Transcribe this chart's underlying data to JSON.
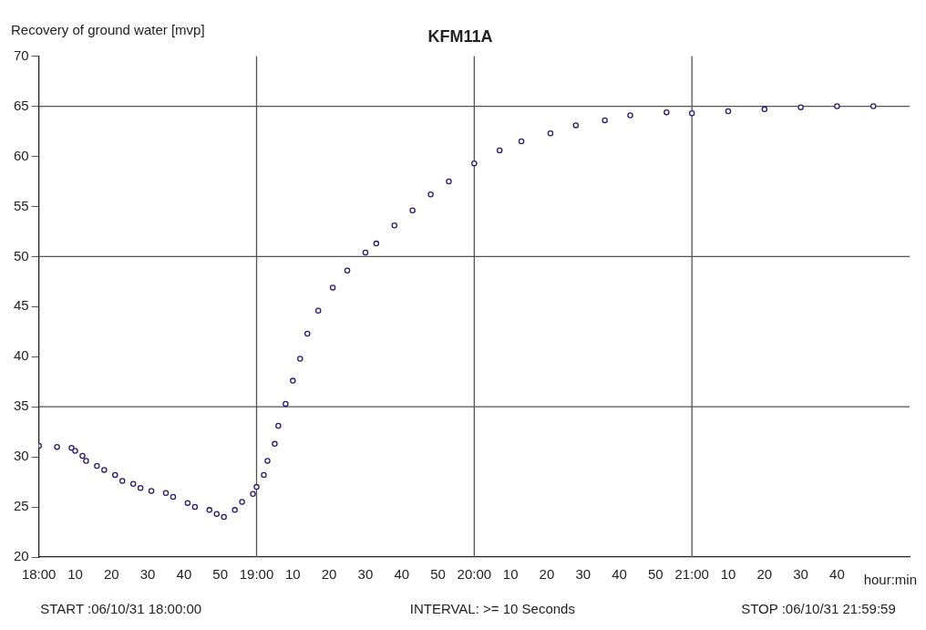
{
  "chart_data": {
    "type": "scatter",
    "title": "KFM11A",
    "ylabel": "Recovery of ground water [mvp]",
    "xlabel": "hour:min",
    "annotations": [
      "START :06/10/31 18:00:00",
      "INTERVAL: >= 10 Seconds",
      "STOP :06/10/31 21:59:59"
    ],
    "x": [
      "--10-31T18:00",
      "--10-31T18:05",
      "--10-31T18:09",
      "--10-31T18:10",
      "--10-31T18:12",
      "--10-31T18:13",
      "--10-31T18:16",
      "--10-31T18:18",
      "--10-31T18:21",
      "--10-31T18:23",
      "--10-31T18:26",
      "--10-31T18:28",
      "--10-31T18:31",
      "--10-31T18:35",
      "--10-31T18:37",
      "--10-31T18:41",
      "--10-31T18:43",
      "--10-31T18:47",
      "--10-31T18:49",
      "--10-31T18:51",
      "--10-31T18:54",
      "--10-31T18:56",
      "--10-31T18:59",
      "--10-31T19:00",
      "--10-31T19:02",
      "--10-31T19:03",
      "--10-31T19:05",
      "--10-31T19:06",
      "--10-31T19:08",
      "--10-31T19:10",
      "--10-31T19:12",
      "--10-31T19:14",
      "--10-31T19:17",
      "--10-31T19:21",
      "--10-31T19:25",
      "--10-31T19:30",
      "--10-31T19:33",
      "--10-31T19:38",
      "--10-31T19:43",
      "--10-31T19:48",
      "--10-31T19:53",
      "--10-31T20:00",
      "--10-31T20:07",
      "--10-31T20:13",
      "--10-31T20:21",
      "--10-31T20:28",
      "--10-31T20:36",
      "--10-31T20:43",
      "--10-31T20:53",
      "--10-31T21:00",
      "--10-31T21:10",
      "--10-31T21:20",
      "--10-31T21:30",
      "--10-31T21:40",
      "--10-31T21:50"
    ],
    "series": [
      {
        "color": "#2e1a6e",
        "values": [
          31.1,
          31.0,
          30.9,
          30.6,
          30.1,
          29.6,
          29.1,
          28.7,
          28.2,
          27.6,
          27.3,
          26.9,
          26.6,
          26.4,
          26.0,
          25.4,
          25.0,
          24.7,
          24.3,
          24.0,
          24.7,
          25.5,
          26.3,
          27.0,
          28.2,
          29.6,
          31.3,
          33.1,
          35.3,
          37.6,
          39.8,
          42.3,
          44.6,
          46.9,
          48.6,
          50.4,
          51.3,
          53.1,
          54.6,
          56.2,
          57.5,
          59.3,
          60.6,
          61.5,
          62.3,
          63.1,
          63.6,
          64.1,
          64.4,
          64.3,
          64.5,
          64.7,
          64.9,
          65.0,
          65.0
        ]
      }
    ],
    "marker": "circle",
    "xlim": [
      "--10-31T18:00",
      "--10-31T22:00"
    ],
    "xticks": [
      {
        "value": "--10-31T18:00",
        "label": "18:00"
      },
      {
        "value": "--10-31T18:10",
        "label": "10"
      },
      {
        "value": "--10-31T18:20",
        "label": "20"
      },
      {
        "value": "--10-31T18:30",
        "label": "30"
      },
      {
        "value": "--10-31T18:40",
        "label": "40"
      },
      {
        "value": "--10-31T18:50",
        "label": "50"
      },
      {
        "value": "--10-31T19:00",
        "label": "19:00"
      },
      {
        "value": "--10-31T19:10",
        "label": "10"
      },
      {
        "value": "--10-31T19:20",
        "label": "20"
      },
      {
        "value": "--10-31T19:30",
        "label": "30"
      },
      {
        "value": "--10-31T19:40",
        "label": "40"
      },
      {
        "value": "--10-31T19:50",
        "label": "50"
      },
      {
        "value": "--10-31T20:00",
        "label": "20:00"
      },
      {
        "value": "--10-31T20:10",
        "label": "10"
      },
      {
        "value": "--10-31T20:20",
        "label": "20"
      },
      {
        "value": "--10-31T20:30",
        "label": "30"
      },
      {
        "value": "--10-31T20:40",
        "label": "40"
      },
      {
        "value": "--10-31T20:50",
        "label": "50"
      },
      {
        "value": "--10-31T21:00",
        "label": "21:00"
      },
      {
        "value": "--10-31T21:10",
        "label": "10"
      },
      {
        "value": "--10-31T21:20",
        "label": "20"
      },
      {
        "value": "--10-31T21:30",
        "label": "30"
      },
      {
        "value": "--10-31T21:40",
        "label": "40"
      }
    ],
    "ylim": [
      20,
      70
    ],
    "yticks": [
      20,
      25,
      30,
      35,
      40,
      45,
      50,
      55,
      60,
      65,
      70
    ],
    "ref_lines": [
      {
        "axis": "x",
        "value": "--10-31T19:00",
        "color": "#555555"
      },
      {
        "axis": "x",
        "value": "--10-31T20:00",
        "color": "#555555"
      },
      {
        "axis": "x",
        "value": "--10-31T21:00",
        "color": "#555555"
      },
      {
        "axis": "y",
        "value": 35,
        "color": "#555555"
      },
      {
        "axis": "y",
        "value": 50,
        "color": "#555555"
      },
      {
        "axis": "y",
        "value": 65,
        "color": "#555555"
      }
    ],
    "legend": false
  }
}
